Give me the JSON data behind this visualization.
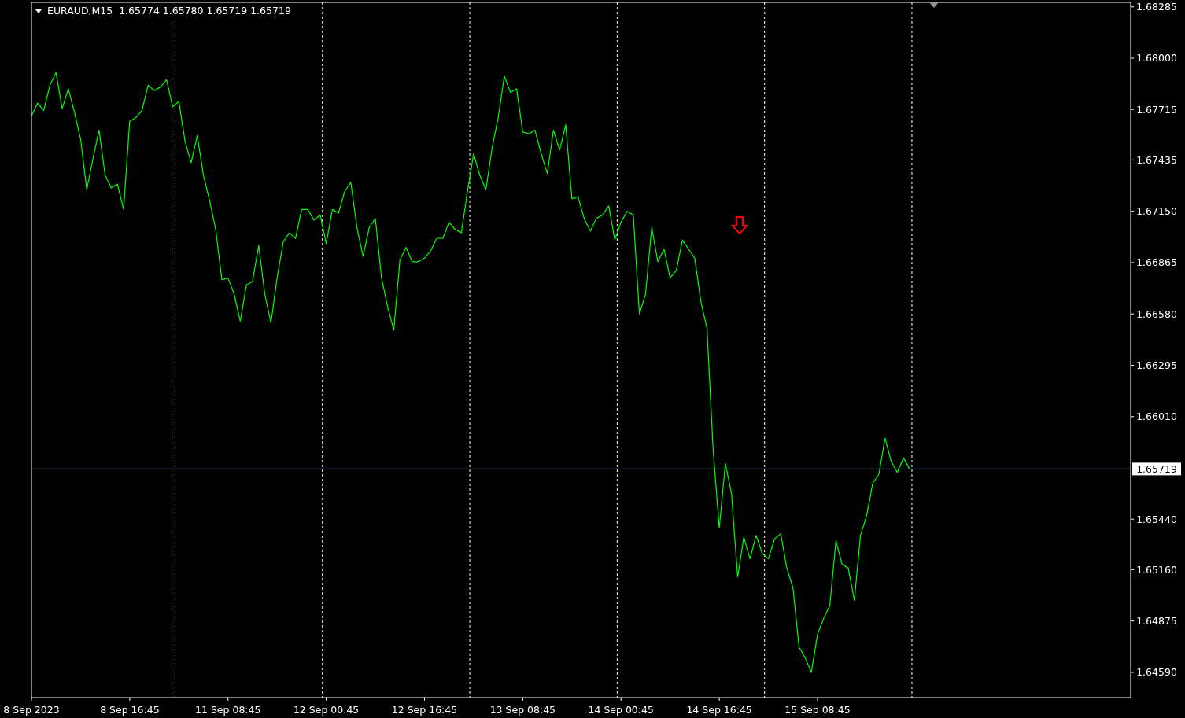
{
  "chart_data": {
    "type": "line",
    "title": "EURAUD,M15  1.65774 1.65780 1.65719 1.65719",
    "categories": [
      "8 Sep 2023",
      null,
      null,
      null,
      null,
      null,
      null,
      null,
      null,
      null,
      null,
      null,
      null,
      null,
      null,
      null,
      "8 Sep 16:45",
      null,
      null,
      null,
      null,
      null,
      null,
      null,
      null,
      null,
      null,
      null,
      null,
      null,
      null,
      null,
      "11 Sep 08:45",
      null,
      null,
      null,
      null,
      null,
      null,
      null,
      null,
      null,
      null,
      null,
      null,
      null,
      null,
      null,
      "12 Sep 00:45",
      null,
      null,
      null,
      null,
      null,
      null,
      null,
      null,
      null,
      null,
      null,
      null,
      null,
      null,
      null,
      "12 Sep 16:45",
      null,
      null,
      null,
      null,
      null,
      null,
      null,
      null,
      null,
      null,
      null,
      null,
      null,
      null,
      null,
      "13 Sep 08:45",
      null,
      null,
      null,
      null,
      null,
      null,
      null,
      null,
      null,
      null,
      null,
      null,
      null,
      null,
      null,
      "14 Sep 00:45",
      null,
      null,
      null,
      null,
      null,
      null,
      null,
      null,
      null,
      null,
      null,
      null,
      null,
      null,
      null,
      "14 Sep 16:45",
      null,
      null,
      null,
      null,
      null,
      null,
      null,
      null,
      null,
      null,
      null,
      null,
      null,
      null,
      null,
      "15 Sep 08:45",
      null,
      null,
      null,
      null,
      null,
      null,
      null,
      null,
      null,
      null,
      null,
      null,
      null,
      null,
      null,
      null,
      null,
      null,
      null,
      null,
      null,
      null,
      null,
      null,
      null,
      null,
      null,
      null,
      null,
      null,
      null,
      null,
      null,
      null,
      null,
      null,
      null,
      null,
      null,
      null,
      null,
      null,
      null,
      null,
      null,
      null,
      null,
      null,
      null,
      null,
      null
    ],
    "series": [
      {
        "color": "#00ff00",
        "values": [
          1.6768,
          1.6775,
          1.6771,
          1.6785,
          1.6792,
          1.6772,
          1.6783,
          1.677,
          1.6755,
          1.6727,
          1.6744,
          1.676,
          1.6735,
          1.6728,
          1.673,
          1.6716,
          1.6765,
          1.6767,
          1.6771,
          1.6785,
          1.6782,
          1.6784,
          1.6788,
          1.6773,
          1.6776,
          1.6754,
          1.6742,
          1.6757,
          1.6735,
          1.6721,
          1.6705,
          1.6677,
          1.6678,
          1.6669,
          1.6654,
          1.6674,
          1.6676,
          1.6696,
          1.6669,
          1.6653,
          1.6678,
          1.6698,
          1.6703,
          1.67,
          1.6716,
          1.6716,
          1.671,
          1.6713,
          1.6697,
          1.6716,
          1.6714,
          1.6726,
          1.6731,
          1.6706,
          1.669,
          1.6706,
          1.6711,
          1.6678,
          1.6662,
          1.6649,
          1.6688,
          1.6695,
          1.6687,
          1.6687,
          1.6689,
          1.6693,
          1.67,
          1.67,
          1.6709,
          1.6705,
          1.6703,
          1.6726,
          1.6747,
          1.6735,
          1.6727,
          1.675,
          1.6767,
          1.679,
          1.6781,
          1.6783,
          1.6759,
          1.6758,
          1.676,
          1.6747,
          1.6736,
          1.676,
          1.6749,
          1.6763,
          1.6722,
          1.6723,
          1.6711,
          1.6704,
          1.6711,
          1.6713,
          1.6718,
          1.6699,
          1.6709,
          1.6715,
          1.6713,
          1.6658,
          1.6669,
          1.6706,
          1.6687,
          1.6694,
          1.6678,
          1.6682,
          1.6699,
          1.6694,
          1.6689,
          1.6665,
          1.665,
          1.6583,
          1.6539,
          1.6575,
          1.6558,
          1.6512,
          1.6534,
          1.6522,
          1.6535,
          1.6525,
          1.6522,
          1.6533,
          1.6536,
          1.6517,
          1.6506,
          1.6473,
          1.6467,
          1.6459,
          1.648,
          1.6489,
          1.6496,
          1.6532,
          1.6519,
          1.6517,
          1.6499,
          1.6535,
          1.6546,
          1.6564,
          1.6569,
          1.6589,
          1.6576,
          1.657,
          1.6578,
          1.65719,
          null,
          null,
          null,
          null,
          null,
          null,
          null,
          null,
          null,
          null,
          null,
          null,
          null,
          null,
          null,
          null,
          null,
          null,
          null,
          null,
          null,
          null,
          null,
          null,
          null,
          null,
          null,
          null,
          null,
          null,
          null,
          null,
          null,
          null,
          null,
          null
        ]
      }
    ],
    "ylim": [
      1.6445,
      1.6831
    ],
    "yticks": [
      {
        "value": 1.6459,
        "label": "1.64590"
      },
      1.64875,
      {
        "value": 1.6516,
        "label": "1.65160"
      },
      {
        "value": 1.6544,
        "label": "1.65440"
      },
      {
        "value": 1.6601,
        "label": "1.66010"
      },
      1.66295,
      {
        "value": 1.6658,
        "label": "1.66580"
      },
      1.66865,
      {
        "value": 1.6715,
        "label": "1.67150"
      },
      1.67435,
      1.67715,
      {
        "value": 1.68,
        "label": "1.68000"
      },
      1.68285
    ],
    "ref_lines": [
      {
        "axis": "y",
        "value": 1.65719,
        "label": "1.65719",
        "color": "#8090a8",
        "line_style": "solid"
      }
    ],
    "line_style": "solid",
    "marker": "none"
  }
}
